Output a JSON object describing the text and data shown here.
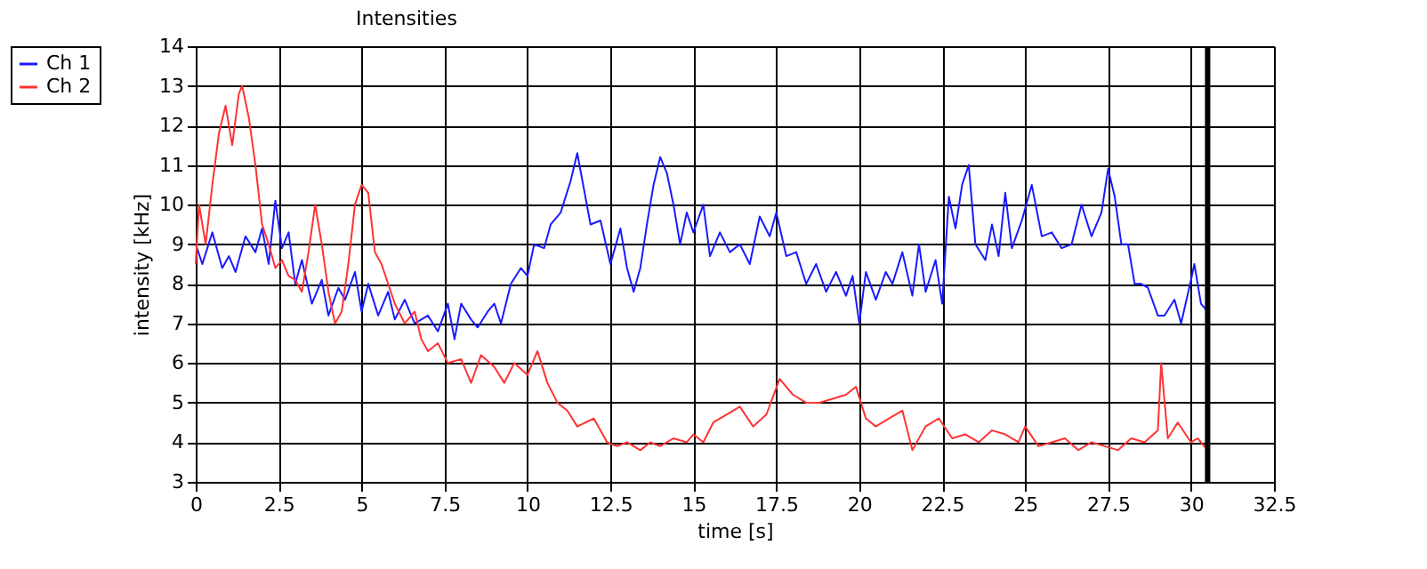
{
  "chart_data": {
    "type": "line",
    "title": "Intensities",
    "xlabel": "time [s]",
    "ylabel": "intensity [kHz]",
    "xlim": [
      0,
      32.5
    ],
    "xticks": [
      0,
      2.5,
      5,
      7.5,
      10,
      12.5,
      15,
      17.5,
      20,
      22.5,
      25,
      27.5,
      30,
      32.5
    ],
    "ylim": [
      3,
      14
    ],
    "yticks": [
      3,
      4,
      5,
      6,
      7,
      8,
      9,
      10,
      11,
      12,
      13,
      14
    ],
    "grid": true,
    "legend": "left",
    "line_style": "solid",
    "marker": "none",
    "ref_lines": [
      {
        "axis": "x",
        "value": 30.5,
        "label": null,
        "color": "#000000"
      }
    ],
    "series": [
      {
        "name": "Ch 1",
        "color": "#1a1aff",
        "x": [
          0,
          0.2,
          0.5,
          0.8,
          1.0,
          1.2,
          1.5,
          1.8,
          2.0,
          2.2,
          2.4,
          2.6,
          2.8,
          3.0,
          3.2,
          3.5,
          3.8,
          4.0,
          4.3,
          4.5,
          4.8,
          5.0,
          5.2,
          5.5,
          5.8,
          6.0,
          6.3,
          6.6,
          7.0,
          7.3,
          7.6,
          7.8,
          8.0,
          8.3,
          8.5,
          8.8,
          9.0,
          9.2,
          9.5,
          9.8,
          10.0,
          10.2,
          10.5,
          10.7,
          11.0,
          11.3,
          11.5,
          11.7,
          11.9,
          12.2,
          12.5,
          12.8,
          13.0,
          13.2,
          13.4,
          13.6,
          13.8,
          14.0,
          14.2,
          14.4,
          14.6,
          14.8,
          15.0,
          15.3,
          15.5,
          15.8,
          16.1,
          16.4,
          16.7,
          17.0,
          17.3,
          17.5,
          17.8,
          18.1,
          18.4,
          18.7,
          19.0,
          19.3,
          19.6,
          19.8,
          20.0,
          20.2,
          20.5,
          20.8,
          21.0,
          21.3,
          21.6,
          21.8,
          22.0,
          22.3,
          22.5,
          22.7,
          22.9,
          23.1,
          23.3,
          23.5,
          23.8,
          24.0,
          24.2,
          24.4,
          24.6,
          24.9,
          25.2,
          25.5,
          25.8,
          26.1,
          26.4,
          26.7,
          27.0,
          27.3,
          27.5,
          27.7,
          27.9,
          28.1,
          28.3,
          28.5,
          28.7,
          29.0,
          29.2,
          29.5,
          29.7,
          30.0,
          30.1,
          30.3,
          30.5
        ],
        "values": [
          9.0,
          8.5,
          9.3,
          8.4,
          8.7,
          8.3,
          9.2,
          8.8,
          9.4,
          8.5,
          10.1,
          8.9,
          9.3,
          8.0,
          8.6,
          7.5,
          8.1,
          7.2,
          7.9,
          7.6,
          8.3,
          7.3,
          8.0,
          7.2,
          7.8,
          7.1,
          7.6,
          7.0,
          7.2,
          6.8,
          7.5,
          6.6,
          7.5,
          7.1,
          6.9,
          7.3,
          7.5,
          7.0,
          8.0,
          8.4,
          8.2,
          9.0,
          8.9,
          9.5,
          9.8,
          10.6,
          11.3,
          10.4,
          9.5,
          9.6,
          8.5,
          9.4,
          8.4,
          7.8,
          8.4,
          9.5,
          10.5,
          11.2,
          10.8,
          10.0,
          9.0,
          9.8,
          9.3,
          10.0,
          8.7,
          9.3,
          8.8,
          9.0,
          8.5,
          9.7,
          9.2,
          9.8,
          8.7,
          8.8,
          8.0,
          8.5,
          7.8,
          8.3,
          7.7,
          8.2,
          7.0,
          8.3,
          7.6,
          8.3,
          8.0,
          8.8,
          7.7,
          9.0,
          7.8,
          8.6,
          7.5,
          10.2,
          9.4,
          10.5,
          11.0,
          9.0,
          8.6,
          9.5,
          8.7,
          10.3,
          8.9,
          9.6,
          10.5,
          9.2,
          9.3,
          8.9,
          9.0,
          10.0,
          9.2,
          9.8,
          10.9,
          10.2,
          9.0,
          9.0,
          8.0,
          8.0,
          7.9,
          7.2,
          7.2,
          7.6,
          7.0,
          8.1,
          8.5,
          7.5,
          7.3
        ]
      },
      {
        "name": "Ch 2",
        "color": "#ff3333",
        "x": [
          0,
          0.1,
          0.3,
          0.5,
          0.7,
          0.9,
          1.1,
          1.3,
          1.4,
          1.6,
          1.8,
          2.0,
          2.2,
          2.4,
          2.6,
          2.8,
          3.0,
          3.2,
          3.4,
          3.6,
          3.8,
          4.0,
          4.2,
          4.4,
          4.6,
          4.8,
          5.0,
          5.2,
          5.4,
          5.6,
          5.8,
          6.0,
          6.3,
          6.6,
          6.8,
          7.0,
          7.3,
          7.6,
          8.0,
          8.3,
          8.6,
          9.0,
          9.3,
          9.6,
          10.0,
          10.3,
          10.6,
          10.9,
          11.2,
          11.5,
          12.0,
          12.4,
          12.7,
          13.0,
          13.4,
          13.7,
          14.0,
          14.4,
          14.8,
          15.0,
          15.3,
          15.6,
          16.0,
          16.4,
          16.8,
          17.2,
          17.6,
          18.0,
          18.4,
          18.8,
          19.2,
          19.6,
          19.9,
          20.2,
          20.5,
          20.9,
          21.3,
          21.6,
          22.0,
          22.4,
          22.8,
          23.2,
          23.6,
          24.0,
          24.4,
          24.8,
          25.0,
          25.4,
          25.8,
          26.2,
          26.6,
          27.0,
          27.4,
          27.8,
          28.2,
          28.6,
          29.0,
          29.1,
          29.3,
          29.6,
          30.0,
          30.2,
          30.5
        ],
        "values": [
          8.5,
          10.0,
          9.0,
          10.5,
          11.8,
          12.5,
          11.5,
          12.8,
          13.0,
          12.2,
          11.0,
          9.5,
          9.0,
          8.4,
          8.6,
          8.2,
          8.1,
          7.8,
          8.8,
          10.0,
          9.0,
          7.8,
          7.0,
          7.3,
          8.5,
          10.0,
          10.5,
          10.3,
          8.8,
          8.5,
          8.0,
          7.5,
          7.0,
          7.3,
          6.6,
          6.3,
          6.5,
          6.0,
          6.1,
          5.5,
          6.2,
          5.9,
          5.5,
          6.0,
          5.7,
          6.3,
          5.5,
          5.0,
          4.8,
          4.4,
          4.6,
          4.0,
          3.9,
          4.0,
          3.8,
          4.0,
          3.9,
          4.1,
          4.0,
          4.2,
          4.0,
          4.5,
          4.7,
          4.9,
          4.4,
          4.7,
          5.6,
          5.2,
          5.0,
          5.0,
          5.1,
          5.2,
          5.4,
          4.6,
          4.4,
          4.6,
          4.8,
          3.8,
          4.4,
          4.6,
          4.1,
          4.2,
          4.0,
          4.3,
          4.2,
          4.0,
          4.4,
          3.9,
          4.0,
          4.1,
          3.8,
          4.0,
          3.9,
          3.8,
          4.1,
          4.0,
          4.3,
          6.0,
          4.1,
          4.5,
          4.0,
          4.1,
          3.8
        ]
      }
    ]
  }
}
